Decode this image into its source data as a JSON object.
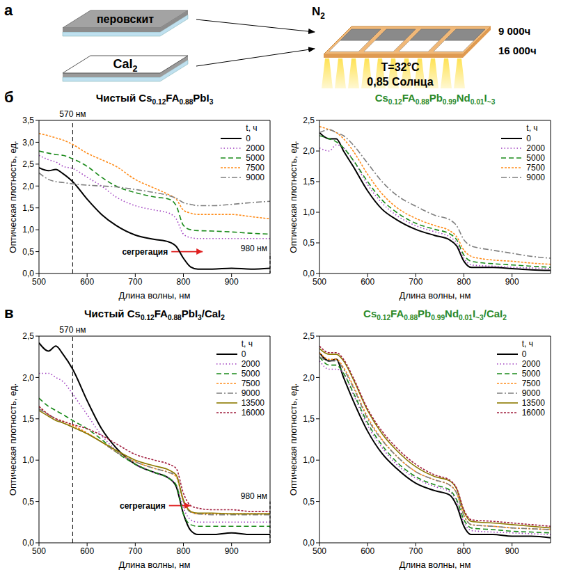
{
  "panel_a": {
    "letter": "а",
    "perovskite": "перовскит",
    "substrate": "CaI2",
    "atmosphere": "N2",
    "time_1": "9 000ч",
    "time_2": "16 000ч",
    "temperature": "T=32°C",
    "illumination": "0,85 Солнца"
  },
  "row_letters": [
    "б",
    "в"
  ],
  "chart_data": [
    {
      "type": "line",
      "title": "Чистый Cs0.12FA0.88PbI3",
      "x_label": "Длина волны, нм",
      "y_label": "Оптическая плотность, ед.",
      "x": [
        500,
        520,
        535,
        550,
        570,
        600,
        630,
        660,
        700,
        740,
        770,
        785,
        800,
        815,
        830,
        860,
        900,
        940,
        980
      ],
      "xlim": [
        500,
        980
      ],
      "xticks": [
        500,
        600,
        700,
        800,
        900
      ],
      "ylim": [
        0,
        3.5
      ],
      "yticks": [
        {
          "value": 0,
          "label": "0,0"
        },
        {
          "value": 0.5,
          "label": "0,5"
        },
        {
          "value": 1,
          "label": "1,0"
        },
        {
          "value": 1.5,
          "label": "1,5"
        },
        {
          "value": 2,
          "label": "2,0"
        },
        {
          "value": 2.5,
          "label": "2,5"
        },
        {
          "value": 3,
          "label": "3,0"
        },
        {
          "value": 3.5,
          "label": "3,5"
        }
      ],
      "legend": "upper right",
      "legend_title": "t, ч",
      "annotations": [
        {
          "text": "570 нм",
          "x": 570
        },
        {
          "text": "980 нм",
          "x": 980,
          "y": 0.45
        },
        {
          "text": "сегрегация",
          "x": 775,
          "x_end": 840,
          "y": 0.5
        }
      ],
      "series": [
        {
          "name": "0",
          "color": "#000000",
          "line_style": "solid",
          "values": [
            2.42,
            2.35,
            2.38,
            2.28,
            2.1,
            1.7,
            1.35,
            1.1,
            0.88,
            0.78,
            0.72,
            0.62,
            0.35,
            0.15,
            0.1,
            0.1,
            0.12,
            0.1,
            0.12
          ]
        },
        {
          "name": "2000",
          "color": "#a040c0",
          "line_style": "dotted",
          "values": [
            2.7,
            2.6,
            2.55,
            2.45,
            2.4,
            2.2,
            2.0,
            1.75,
            1.55,
            1.45,
            1.38,
            1.25,
            0.9,
            0.82,
            0.8,
            0.8,
            0.8,
            0.8,
            0.8
          ]
        },
        {
          "name": "5000",
          "color": "#1a8a1a",
          "line_style": "dashed",
          "values": [
            2.8,
            2.75,
            2.72,
            2.7,
            2.62,
            2.45,
            2.2,
            2.0,
            1.85,
            1.75,
            1.7,
            1.55,
            1.1,
            1.0,
            0.98,
            0.97,
            0.95,
            0.92,
            0.9
          ]
        },
        {
          "name": "7500",
          "color": "#ff8c1a",
          "line_style": "short_dash",
          "values": [
            3.2,
            3.15,
            3.1,
            3.05,
            2.95,
            2.75,
            2.6,
            2.45,
            2.15,
            1.95,
            1.8,
            1.7,
            1.45,
            1.38,
            1.35,
            1.35,
            1.35,
            1.3,
            1.25
          ]
        },
        {
          "name": "9000",
          "color": "#7f7f7f",
          "line_style": "dash_dot",
          "values": [
            2.3,
            2.15,
            2.1,
            2.08,
            2.05,
            2.02,
            2.0,
            1.98,
            1.92,
            1.85,
            1.78,
            1.72,
            1.62,
            1.58,
            1.55,
            1.55,
            1.58,
            1.62,
            1.65
          ]
        }
      ]
    },
    {
      "type": "line",
      "title": "Cs0.12FA0.88Pb0.99Nd0.01I~3",
      "x_label": "Длина волны, нм",
      "y_label": "Оптическая плотность, ед.",
      "x": [
        500,
        520,
        535,
        550,
        570,
        600,
        630,
        660,
        700,
        740,
        770,
        785,
        800,
        815,
        830,
        860,
        900,
        940,
        980
      ],
      "xlim": [
        500,
        980
      ],
      "xticks": [
        500,
        600,
        700,
        800,
        900
      ],
      "ylim": [
        0,
        2.5
      ],
      "yticks": [
        {
          "value": 0,
          "label": "0,0"
        },
        {
          "value": 0.5,
          "label": "0,5"
        },
        {
          "value": 1,
          "label": "1,0"
        },
        {
          "value": 1.5,
          "label": "1,5"
        },
        {
          "value": 2,
          "label": "2,0"
        },
        {
          "value": 2.5,
          "label": "2,5"
        }
      ],
      "legend": "upper right",
      "legend_title": "t, ч",
      "annotations": [],
      "series": [
        {
          "name": "0",
          "color": "#000000",
          "line_style": "solid",
          "values": [
            2.3,
            2.2,
            2.2,
            2.0,
            1.75,
            1.35,
            1.05,
            0.88,
            0.72,
            0.62,
            0.55,
            0.45,
            0.2,
            0.1,
            0.1,
            0.1,
            0.08,
            0.06,
            0.05
          ]
        },
        {
          "name": "2000",
          "color": "#a040c0",
          "line_style": "dotted",
          "values": [
            2.05,
            2.0,
            2.1,
            2.05,
            1.85,
            1.45,
            1.15,
            0.95,
            0.78,
            0.68,
            0.6,
            0.5,
            0.25,
            0.14,
            0.13,
            0.12,
            0.1,
            0.09,
            0.08
          ]
        },
        {
          "name": "5000",
          "color": "#1a8a1a",
          "line_style": "dashed",
          "values": [
            2.25,
            2.2,
            2.15,
            2.05,
            1.85,
            1.5,
            1.2,
            1.0,
            0.82,
            0.72,
            0.65,
            0.55,
            0.3,
            0.2,
            0.18,
            0.16,
            0.14,
            0.12,
            0.1
          ]
        },
        {
          "name": "7500",
          "color": "#ff8c1a",
          "line_style": "short_dash",
          "values": [
            2.4,
            2.35,
            2.3,
            2.2,
            2.0,
            1.62,
            1.3,
            1.08,
            0.9,
            0.78,
            0.7,
            0.6,
            0.38,
            0.28,
            0.25,
            0.22,
            0.2,
            0.17,
            0.15
          ]
        },
        {
          "name": "9000",
          "color": "#7f7f7f",
          "line_style": "dash_dot",
          "values": [
            2.3,
            2.35,
            2.3,
            2.25,
            2.1,
            1.8,
            1.5,
            1.28,
            1.1,
            0.95,
            0.88,
            0.78,
            0.55,
            0.45,
            0.42,
            0.38,
            0.33,
            0.28,
            0.25
          ]
        }
      ]
    },
    {
      "type": "line",
      "title": "Чистый Cs0.12FA0.88PbI3/CaI2",
      "x_label": "Длина волны, нм",
      "y_label": "Оптическая плотность, ед.",
      "x": [
        500,
        520,
        535,
        550,
        570,
        600,
        630,
        660,
        700,
        740,
        770,
        785,
        800,
        815,
        830,
        860,
        900,
        940,
        980
      ],
      "xlim": [
        500,
        980
      ],
      "xticks": [
        500,
        600,
        700,
        800,
        900
      ],
      "ylim": [
        0,
        2.5
      ],
      "yticks": [
        {
          "value": 0,
          "label": "0,0"
        },
        {
          "value": 0.5,
          "label": "0,5"
        },
        {
          "value": 1,
          "label": "1,0"
        },
        {
          "value": 1.5,
          "label": "1,5"
        },
        {
          "value": 2,
          "label": "2,0"
        },
        {
          "value": 2.5,
          "label": "2,5"
        }
      ],
      "legend": "upper right",
      "legend_title": "t, ч",
      "annotations": [
        {
          "text": "570 нм",
          "x": 570
        },
        {
          "text": "980 нм",
          "x": 980,
          "y": 0.5
        },
        {
          "text": "сегрегация",
          "x": 770,
          "x_end": 815,
          "y": 0.45
        }
      ],
      "series": [
        {
          "name": "0",
          "color": "#000000",
          "line_style": "solid",
          "values": [
            2.42,
            2.32,
            2.38,
            2.28,
            2.1,
            1.72,
            1.38,
            1.15,
            0.95,
            0.85,
            0.78,
            0.68,
            0.35,
            0.15,
            0.1,
            0.1,
            0.12,
            0.1,
            0.1
          ]
        },
        {
          "name": "2000",
          "color": "#a040c0",
          "line_style": "dotted",
          "values": [
            2.05,
            2.05,
            2.0,
            1.95,
            1.8,
            1.55,
            1.3,
            1.12,
            0.95,
            0.85,
            0.78,
            0.7,
            0.42,
            0.28,
            0.25,
            0.25,
            0.25,
            0.25,
            0.25
          ]
        },
        {
          "name": "5000",
          "color": "#1a8a1a",
          "line_style": "dashed",
          "values": [
            1.75,
            1.65,
            1.6,
            1.55,
            1.48,
            1.38,
            1.25,
            1.1,
            0.95,
            0.85,
            0.78,
            0.7,
            0.35,
            0.22,
            0.2,
            0.2,
            0.2,
            0.2,
            0.2
          ]
        },
        {
          "name": "7500",
          "color": "#ff8c1a",
          "line_style": "short_dash",
          "values": [
            1.65,
            1.55,
            1.5,
            1.47,
            1.42,
            1.33,
            1.22,
            1.1,
            0.98,
            0.9,
            0.85,
            0.8,
            0.5,
            0.38,
            0.35,
            0.35,
            0.35,
            0.35,
            0.35
          ]
        },
        {
          "name": "9000",
          "color": "#7f7f7f",
          "line_style": "dash_dot",
          "values": [
            1.62,
            1.55,
            1.5,
            1.45,
            1.4,
            1.32,
            1.22,
            1.1,
            0.98,
            0.9,
            0.85,
            0.82,
            0.5,
            0.37,
            0.35,
            0.34,
            0.34,
            0.34,
            0.34
          ]
        },
        {
          "name": "13500",
          "color": "#8c7a00",
          "line_style": "solid",
          "values": [
            1.6,
            1.53,
            1.48,
            1.45,
            1.4,
            1.32,
            1.22,
            1.12,
            1.0,
            0.93,
            0.88,
            0.82,
            0.52,
            0.38,
            0.36,
            0.36,
            0.35,
            0.35,
            0.35
          ]
        },
        {
          "name": "16000",
          "color": "#a01c3c",
          "line_style": "short_dash",
          "values": [
            1.65,
            1.55,
            1.5,
            1.47,
            1.43,
            1.38,
            1.3,
            1.2,
            1.07,
            1.0,
            0.95,
            0.9,
            0.6,
            0.45,
            0.42,
            0.4,
            0.4,
            0.38,
            0.38
          ]
        }
      ]
    },
    {
      "type": "line",
      "title": "Cs0.12FA0.88Pb0.99Nd0.01I~3/CaI2",
      "x_label": "Длина волны, нм",
      "y_label": "Оптическая плотность, ед.",
      "x": [
        500,
        520,
        535,
        550,
        570,
        600,
        630,
        660,
        700,
        740,
        770,
        785,
        800,
        815,
        830,
        860,
        900,
        940,
        980
      ],
      "xlim": [
        500,
        980
      ],
      "xticks": [
        500,
        600,
        700,
        800,
        900
      ],
      "ylim": [
        0,
        2.5
      ],
      "yticks": [
        {
          "value": 0,
          "label": "0,0"
        },
        {
          "value": 0.5,
          "label": "0,5"
        },
        {
          "value": 1,
          "label": "1,0"
        },
        {
          "value": 1.5,
          "label": "1,5"
        },
        {
          "value": 2,
          "label": "2,0"
        },
        {
          "value": 2.5,
          "label": "2,5"
        }
      ],
      "legend": "upper right",
      "legend_title": "t, ч",
      "annotations": [],
      "series": [
        {
          "name": "0",
          "color": "#000000",
          "line_style": "solid",
          "values": [
            2.3,
            2.2,
            2.22,
            2.0,
            1.72,
            1.35,
            1.08,
            0.9,
            0.72,
            0.63,
            0.58,
            0.45,
            0.2,
            0.1,
            0.1,
            0.1,
            0.08,
            0.08,
            0.06
          ]
        },
        {
          "name": "2000",
          "color": "#a040c0",
          "line_style": "dotted",
          "values": [
            2.2,
            2.1,
            2.1,
            2.05,
            1.8,
            1.42,
            1.15,
            0.95,
            0.78,
            0.68,
            0.62,
            0.5,
            0.25,
            0.15,
            0.14,
            0.13,
            0.12,
            0.11,
            0.1
          ]
        },
        {
          "name": "5000",
          "color": "#1a8a1a",
          "line_style": "dashed",
          "values": [
            2.25,
            2.15,
            2.15,
            2.05,
            1.82,
            1.45,
            1.18,
            0.98,
            0.8,
            0.7,
            0.64,
            0.52,
            0.28,
            0.18,
            0.17,
            0.16,
            0.14,
            0.13,
            0.12
          ]
        },
        {
          "name": "7500",
          "color": "#ff8c1a",
          "line_style": "short_dash",
          "values": [
            2.3,
            2.22,
            2.22,
            2.12,
            1.9,
            1.52,
            1.25,
            1.05,
            0.86,
            0.76,
            0.7,
            0.6,
            0.33,
            0.22,
            0.21,
            0.2,
            0.18,
            0.17,
            0.16
          ]
        },
        {
          "name": "9000",
          "color": "#7f7f7f",
          "line_style": "dash_dot",
          "values": [
            2.25,
            2.2,
            2.2,
            2.1,
            1.88,
            1.5,
            1.24,
            1.05,
            0.86,
            0.76,
            0.7,
            0.6,
            0.33,
            0.22,
            0.21,
            0.2,
            0.18,
            0.17,
            0.16
          ]
        },
        {
          "name": "13500",
          "color": "#8c7a00",
          "line_style": "solid",
          "values": [
            2.35,
            2.28,
            2.28,
            2.2,
            1.98,
            1.6,
            1.32,
            1.12,
            0.92,
            0.8,
            0.75,
            0.65,
            0.38,
            0.26,
            0.25,
            0.24,
            0.22,
            0.2,
            0.18
          ]
        },
        {
          "name": "16000",
          "color": "#a01c3c",
          "line_style": "short_dash",
          "values": [
            2.38,
            2.3,
            2.3,
            2.22,
            2.0,
            1.62,
            1.35,
            1.15,
            0.95,
            0.82,
            0.76,
            0.66,
            0.4,
            0.28,
            0.27,
            0.26,
            0.24,
            0.22,
            0.2
          ]
        }
      ]
    }
  ]
}
